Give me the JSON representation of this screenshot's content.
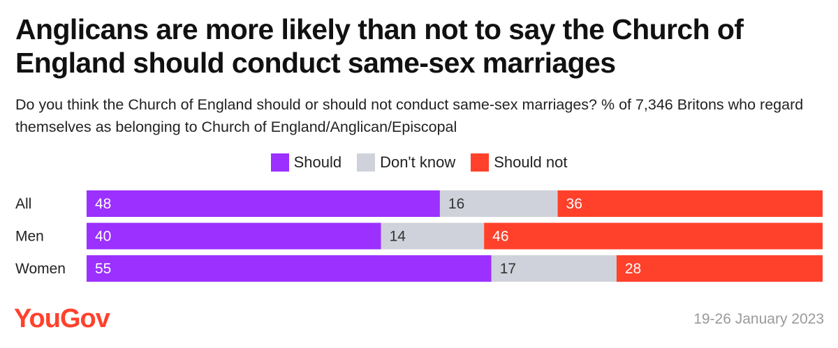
{
  "header": {
    "title": "Anglicans are more likely than not to say the Church of England should conduct same-sex marriages",
    "subtitle": "Do you think the Church of England should or should not conduct same-sex marriages? % of 7,346 Britons who regard themselves as belonging to Church of England/Anglican/Episcopal"
  },
  "footer": {
    "brand": "YouGov",
    "date": "19-26 January 2023"
  },
  "colors": {
    "should": "#9b30ff",
    "dont_know": "#cfd2da",
    "should_not": "#ff412c",
    "brand": "#ff412c"
  },
  "chart_data": {
    "type": "bar",
    "orientation": "horizontal",
    "stacked": true,
    "title": "Anglicans are more likely than not to say the Church of England should conduct same-sex marriages",
    "categories": [
      "All",
      "Men",
      "Women"
    ],
    "series": [
      {
        "name": "Should",
        "values": [
          48,
          40,
          55
        ],
        "color": "#9b30ff"
      },
      {
        "name": "Don't know",
        "values": [
          16,
          14,
          17
        ],
        "color": "#cfd2da"
      },
      {
        "name": "Should not",
        "values": [
          36,
          46,
          28
        ],
        "color": "#ff412c"
      }
    ],
    "xlim": [
      0,
      100
    ],
    "grid": false,
    "legend": "top-center"
  }
}
